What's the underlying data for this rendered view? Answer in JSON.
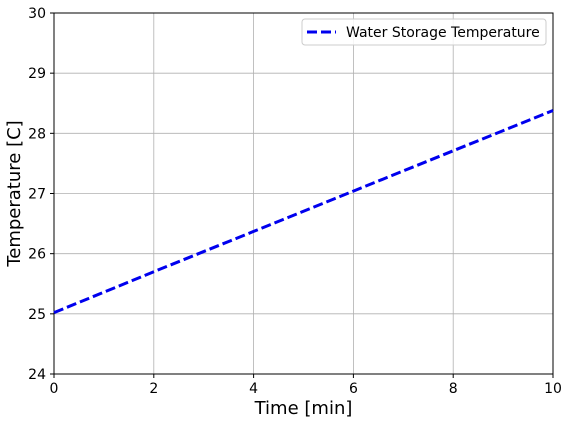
{
  "chart_data": {
    "type": "line",
    "title": "",
    "xlabel": "Time [min]",
    "ylabel": "Temperature [C]",
    "xlim": [
      0,
      10
    ],
    "ylim": [
      24,
      30
    ],
    "xticks": [
      0,
      2,
      4,
      6,
      8,
      10
    ],
    "yticks": [
      24,
      25,
      26,
      27,
      28,
      29,
      30
    ],
    "grid": true,
    "legend_position": "top-right",
    "series": [
      {
        "name": "Water Storage Temperature",
        "color": "#0000ee",
        "style": "dashed",
        "x": [
          0,
          2,
          4,
          6,
          8,
          10
        ],
        "y": [
          25.02,
          25.7,
          26.37,
          27.04,
          27.71,
          28.38
        ]
      }
    ]
  }
}
